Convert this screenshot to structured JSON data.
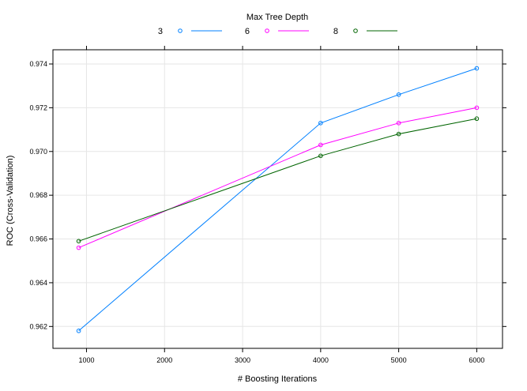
{
  "chart_data": {
    "type": "line",
    "xlabel": "# Boosting Iterations",
    "ylabel": "ROC (Cross-Validation)",
    "legend_title": "Max Tree Depth",
    "legend_position": "top",
    "grid": true,
    "xlim": [
      570,
      6330
    ],
    "ylim": [
      0.961,
      0.97465
    ],
    "x_ticks": [
      1000,
      2000,
      3000,
      4000,
      5000,
      6000
    ],
    "y_ticks": [
      0.962,
      0.964,
      0.966,
      0.968,
      0.97,
      0.972,
      0.974
    ],
    "x_tick_labels": [
      "1000",
      "2000",
      "3000",
      "4000",
      "5000",
      "6000"
    ],
    "y_tick_labels": [
      "0.962",
      "0.964",
      "0.966",
      "0.968",
      "0.970",
      "0.972",
      "0.974"
    ],
    "x": [
      900,
      4000,
      5000,
      6000
    ],
    "series": [
      {
        "name": "3",
        "color": "#0080ff",
        "values": [
          0.9618,
          0.9713,
          0.9726,
          0.9738
        ]
      },
      {
        "name": "6",
        "color": "#ff00ff",
        "values": [
          0.9656,
          0.9703,
          0.9713,
          0.972
        ]
      },
      {
        "name": "8",
        "color": "#006400",
        "values": [
          0.9659,
          0.9698,
          0.9708,
          0.9715
        ]
      }
    ]
  }
}
